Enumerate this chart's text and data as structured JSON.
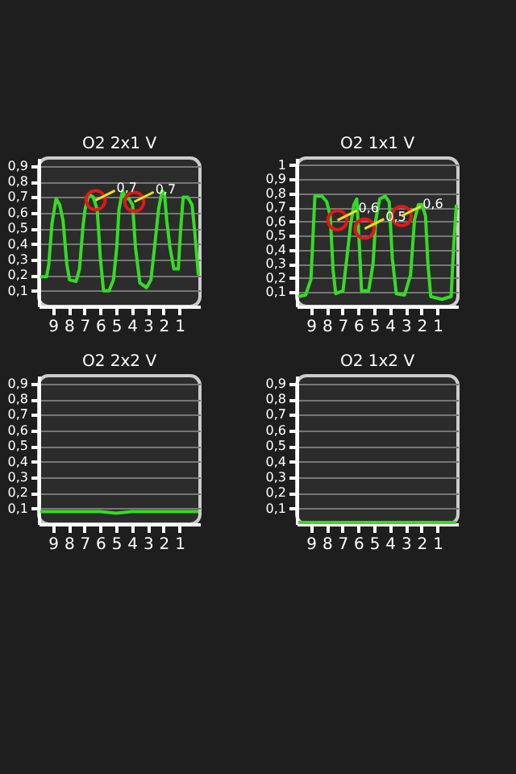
{
  "chart_data": [
    {
      "type": "line",
      "title": "O2 2x1 V",
      "xlim": [
        9.9,
        -0.3
      ],
      "ylim": [
        0,
        0.95
      ],
      "xticks": [
        9,
        8,
        7,
        6,
        5,
        4,
        3,
        2,
        1
      ],
      "yticks": [
        {
          "value": 0.1,
          "label": "0,1"
        },
        {
          "value": 0.2,
          "label": "0,2"
        },
        {
          "value": 0.3,
          "label": "0,3"
        },
        {
          "value": 0.4,
          "label": "0,4"
        },
        {
          "value": 0.5,
          "label": "0,5"
        },
        {
          "value": 0.6,
          "label": "0,6"
        },
        {
          "value": 0.7,
          "label": "0,7"
        },
        {
          "value": 0.8,
          "label": "0,8"
        },
        {
          "value": 0.9,
          "label": "0,9"
        }
      ],
      "grid": "y",
      "marker": "none",
      "line_style": "solid",
      "series": [
        {
          "color": "#33dd22",
          "x": [
            9.8,
            9.4,
            9.26,
            9.06,
            8.8,
            8.57,
            8.36,
            8.12,
            7.95,
            7.53,
            7.32,
            7.1,
            6.97,
            6.73,
            6.45,
            6.2,
            6.0,
            5.8,
            5.45,
            5.17,
            4.96,
            4.82,
            4.6,
            4.4,
            4.2,
            3.96,
            3.78,
            3.5,
            3.08,
            2.8,
            2.57,
            2.32,
            2.1,
            1.94,
            1.8,
            1.6,
            1.35,
            1.07,
            0.93,
            0.76,
            0.48,
            0.2,
            0.03,
            -0.2
          ],
          "values": [
            0.19,
            0.19,
            0.27,
            0.53,
            0.69,
            0.65,
            0.55,
            0.27,
            0.17,
            0.16,
            0.24,
            0.51,
            0.62,
            0.72,
            0.7,
            0.62,
            0.31,
            0.1,
            0.1,
            0.17,
            0.38,
            0.62,
            0.74,
            0.69,
            0.69,
            0.65,
            0.38,
            0.15,
            0.12,
            0.17,
            0.38,
            0.62,
            0.74,
            0.72,
            0.55,
            0.38,
            0.24,
            0.24,
            0.48,
            0.7,
            0.7,
            0.65,
            0.48,
            0.2
          ]
        },
        {
          "type": "scatter",
          "marker": "circle",
          "color": "#e01818",
          "x": [
            6.3,
            3.85
          ],
          "values": [
            0.68,
            0.67
          ]
        }
      ],
      "annotations": [
        {
          "text": "0,7",
          "x": 6.3,
          "y": 0.68
        },
        {
          "text": "0,7",
          "x": 3.85,
          "y": 0.67
        }
      ]
    },
    {
      "type": "line",
      "title": "O2 1x1 V",
      "xlim": [
        9.9,
        -0.3
      ],
      "ylim": [
        0,
        1.05
      ],
      "xticks": [
        9,
        8,
        7,
        6,
        5,
        4,
        3,
        2,
        1
      ],
      "yticks": [
        {
          "value": 0.1,
          "label": "0,1"
        },
        {
          "value": 0.2,
          "label": "0,2"
        },
        {
          "value": 0.3,
          "label": "0,3"
        },
        {
          "value": 0.4,
          "label": "0,4"
        },
        {
          "value": 0.5,
          "label": "0,5"
        },
        {
          "value": 0.6,
          "label": "0,6"
        },
        {
          "value": 0.7,
          "label": "0,7"
        },
        {
          "value": 0.8,
          "label": "0,8"
        },
        {
          "value": 0.9,
          "label": "0,9"
        },
        {
          "value": 1,
          "label": "1"
        }
      ],
      "grid": "y",
      "marker": "none",
      "line_style": "solid",
      "series": [
        {
          "color": "#33dd22",
          "x": [
            9.8,
            9.34,
            9.0,
            8.75,
            8.3,
            8.0,
            7.78,
            7.6,
            7.43,
            6.97,
            6.73,
            6.5,
            6.28,
            6.1,
            5.93,
            5.8,
            5.35,
            5.07,
            4.9,
            4.65,
            4.3,
            4.05,
            3.85,
            3.6,
            3.08,
            2.7,
            2.45,
            2.2,
            1.97,
            1.75,
            1.6,
            1.42,
            0.72,
            0.13,
            -0.04,
            -0.2
          ],
          "values": [
            0.07,
            0.08,
            0.19,
            0.78,
            0.78,
            0.74,
            0.64,
            0.26,
            0.09,
            0.11,
            0.34,
            0.57,
            0.72,
            0.76,
            0.42,
            0.11,
            0.11,
            0.3,
            0.61,
            0.76,
            0.78,
            0.74,
            0.34,
            0.09,
            0.08,
            0.22,
            0.61,
            0.72,
            0.72,
            0.64,
            0.3,
            0.07,
            0.05,
            0.07,
            0.45,
            0.72
          ]
        },
        {
          "type": "scatter",
          "marker": "circle",
          "color": "#e01818",
          "x": [
            7.32,
            5.6,
            3.26
          ],
          "values": [
            0.61,
            0.55,
            0.64
          ]
        }
      ],
      "annotations": [
        {
          "text": "0,6",
          "x": 7.32,
          "y": 0.61
        },
        {
          "text": "0,5",
          "x": 5.6,
          "y": 0.55
        },
        {
          "text": "0,6",
          "x": 3.26,
          "y": 0.64
        }
      ]
    },
    {
      "type": "line",
      "title": "O2 2x2 V",
      "xlim": [
        9.9,
        -0.3
      ],
      "ylim": [
        0,
        0.95
      ],
      "xticks": [
        9,
        8,
        7,
        6,
        5,
        4,
        3,
        2,
        1
      ],
      "yticks": [
        {
          "value": 0.1,
          "label": "0,1"
        },
        {
          "value": 0.2,
          "label": "0,2"
        },
        {
          "value": 0.3,
          "label": "0,3"
        },
        {
          "value": 0.4,
          "label": "0,4"
        },
        {
          "value": 0.5,
          "label": "0,5"
        },
        {
          "value": 0.6,
          "label": "0,6"
        },
        {
          "value": 0.7,
          "label": "0,7"
        },
        {
          "value": 0.8,
          "label": "0,8"
        },
        {
          "value": 0.9,
          "label": "0,9"
        }
      ],
      "grid": "y",
      "marker": "none",
      "line_style": "solid",
      "series": [
        {
          "color": "#33dd22",
          "x": [
            9.8,
            8.5,
            7.0,
            6.0,
            5.0,
            4.0,
            3.0,
            2.0,
            1.0,
            -0.2
          ],
          "values": [
            0.08,
            0.08,
            0.08,
            0.08,
            0.07,
            0.08,
            0.08,
            0.08,
            0.08,
            0.08
          ]
        }
      ]
    },
    {
      "type": "line",
      "title": "O2 1x2 V",
      "xlim": [
        9.9,
        -0.3
      ],
      "ylim": [
        0,
        0.95
      ],
      "xticks": [
        9,
        8,
        7,
        6,
        5,
        4,
        3,
        2,
        1
      ],
      "yticks": [
        {
          "value": 0.1,
          "label": "0,1"
        },
        {
          "value": 0.2,
          "label": "0,2"
        },
        {
          "value": 0.3,
          "label": "0,3"
        },
        {
          "value": 0.4,
          "label": "0,4"
        },
        {
          "value": 0.5,
          "label": "0,5"
        },
        {
          "value": 0.6,
          "label": "0,6"
        },
        {
          "value": 0.7,
          "label": "0,7"
        },
        {
          "value": 0.8,
          "label": "0,8"
        },
        {
          "value": 0.9,
          "label": "0,9"
        }
      ],
      "grid": "y",
      "marker": "none",
      "line_style": "solid",
      "series": [
        {
          "color": "#33dd22",
          "x": [
            9.8,
            -0.2
          ],
          "values": [
            0.01,
            0.01
          ]
        }
      ]
    }
  ]
}
